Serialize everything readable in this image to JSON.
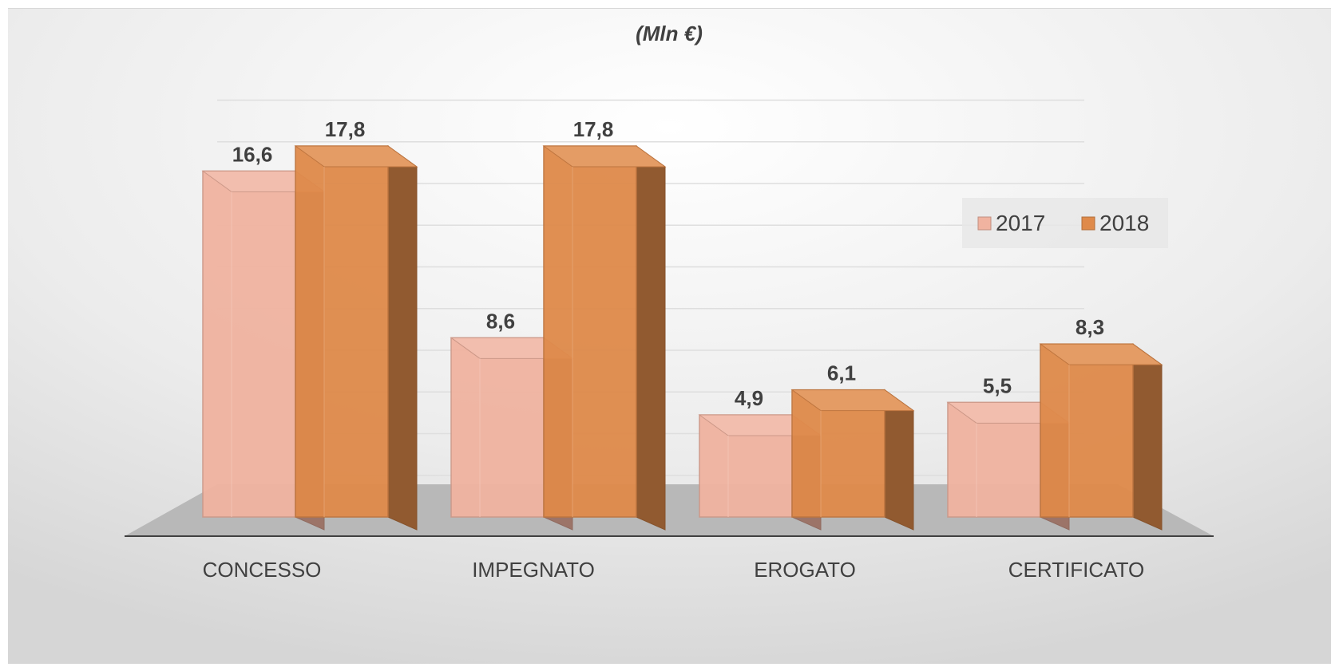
{
  "chart_data": {
    "type": "bar",
    "title": "",
    "subtitle": "(Mln €)",
    "xlabel": "",
    "ylabel": "",
    "categories": [
      "CONCESSO",
      "IMPEGNATO",
      "EROGATO",
      "CERTIFICATO"
    ],
    "series": [
      {
        "name": "2017",
        "values": [
          16.6,
          8.6,
          4.9,
          5.5
        ],
        "labels": [
          "16,6",
          "8,6",
          "4,9",
          "5,5"
        ],
        "color": "#f0b3a0"
      },
      {
        "name": "2018",
        "values": [
          17.8,
          17.8,
          6.1,
          8.3
        ],
        "labels": [
          "17,8",
          "17,8",
          "6,1",
          "8,3"
        ],
        "color": "#df8a4a"
      }
    ],
    "ylim": [
      0,
      20
    ],
    "grid": true,
    "legend": "right",
    "style": "3d-columns"
  }
}
